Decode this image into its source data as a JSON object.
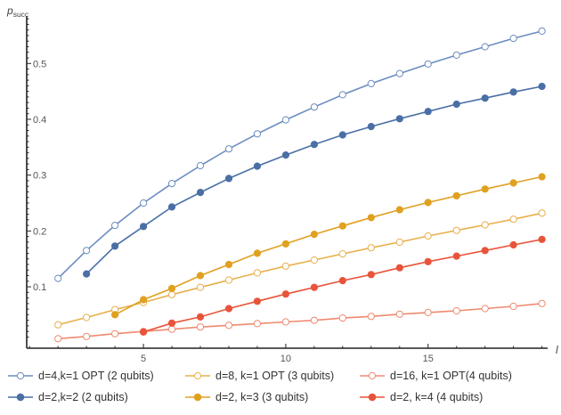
{
  "chart_data": {
    "type": "line",
    "ylabel_main": "p",
    "ylabel_sub": "succ",
    "xlabel": "l",
    "xlim": [
      0.9,
      19.2
    ],
    "ylim": [
      -0.01,
      0.585
    ],
    "x_ticks": [
      5,
      10,
      15
    ],
    "y_ticks": [
      0.1,
      0.2,
      0.3,
      0.4,
      0.5
    ],
    "series": [
      {
        "name": "d=4,k=1 OPT (2 qubits)",
        "color": "#6b8cc0",
        "marker": "open",
        "x": [
          2,
          3,
          4,
          5,
          6,
          7,
          8,
          9,
          10,
          11,
          12,
          13,
          14,
          15,
          16,
          17,
          18,
          19
        ],
        "values": [
          0.115,
          0.165,
          0.21,
          0.25,
          0.285,
          0.317,
          0.347,
          0.374,
          0.399,
          0.422,
          0.444,
          0.464,
          0.482,
          0.499,
          0.515,
          0.53,
          0.545,
          0.558
        ]
      },
      {
        "name": "d=2,k=2 (2 qubits)",
        "color": "#4a6fa5",
        "marker": "filled",
        "x": [
          3,
          4,
          5,
          6,
          7,
          8,
          9,
          10,
          11,
          12,
          13,
          14,
          15,
          16,
          17,
          18,
          19
        ],
        "values": [
          0.123,
          0.173,
          0.208,
          0.243,
          0.269,
          0.294,
          0.316,
          0.336,
          0.355,
          0.372,
          0.387,
          0.401,
          0.414,
          0.427,
          0.438,
          0.449,
          0.459
        ]
      },
      {
        "name": "d=8, k=1 OPT (3 qubits)",
        "color": "#e8b04d",
        "marker": "open",
        "x": [
          2,
          3,
          4,
          5,
          6,
          7,
          8,
          9,
          10,
          11,
          12,
          13,
          14,
          15,
          16,
          17,
          18,
          19
        ],
        "values": [
          0.032,
          0.045,
          0.059,
          0.072,
          0.086,
          0.099,
          0.112,
          0.125,
          0.137,
          0.148,
          0.159,
          0.17,
          0.18,
          0.191,
          0.201,
          0.211,
          0.221,
          0.232
        ]
      },
      {
        "name": "d=2, k=3 (3 qubits)",
        "color": "#e0a020",
        "marker": "filled",
        "x": [
          4,
          5,
          6,
          7,
          8,
          9,
          10,
          11,
          12,
          13,
          14,
          15,
          16,
          17,
          18,
          19
        ],
        "values": [
          0.05,
          0.077,
          0.097,
          0.12,
          0.14,
          0.16,
          0.177,
          0.194,
          0.209,
          0.224,
          0.238,
          0.251,
          0.263,
          0.275,
          0.286,
          0.297
        ]
      },
      {
        "name": "d=16, k=1 OPT(4 qubits)",
        "color": "#ef8a70",
        "marker": "open",
        "x": [
          2,
          3,
          4,
          5,
          6,
          7,
          8,
          9,
          10,
          11,
          12,
          13,
          14,
          15,
          16,
          17,
          18,
          19
        ],
        "values": [
          0.007,
          0.011,
          0.016,
          0.02,
          0.024,
          0.028,
          0.031,
          0.034,
          0.037,
          0.04,
          0.044,
          0.047,
          0.051,
          0.054,
          0.057,
          0.061,
          0.065,
          0.07
        ]
      },
      {
        "name": "d=2, k=4 (4 qubits)",
        "color": "#e8543a",
        "marker": "filled",
        "x": [
          5,
          6,
          7,
          8,
          9,
          10,
          11,
          12,
          13,
          14,
          15,
          16,
          17,
          18,
          19
        ],
        "values": [
          0.019,
          0.035,
          0.046,
          0.061,
          0.074,
          0.087,
          0.099,
          0.111,
          0.122,
          0.134,
          0.145,
          0.155,
          0.165,
          0.175,
          0.185
        ]
      }
    ]
  }
}
